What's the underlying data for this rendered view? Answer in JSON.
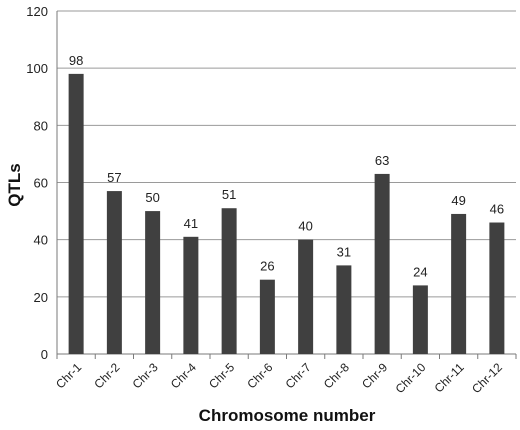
{
  "chart_data": {
    "type": "bar",
    "categories": [
      "Chr-1",
      "Chr-2",
      "Chr-3",
      "Chr-4",
      "Chr-5",
      "Chr-6",
      "Chr-7",
      "Chr-8",
      "Chr-9",
      "Chr-10",
      "Chr-11",
      "Chr-12"
    ],
    "values": [
      98,
      57,
      50,
      41,
      51,
      26,
      40,
      31,
      63,
      24,
      49,
      46
    ],
    "title": "",
    "xlabel": "Chromosome number",
    "ylabel": "QTLs",
    "ylim": [
      0,
      120
    ],
    "yticks": [
      0,
      20,
      40,
      60,
      80,
      100,
      120
    ],
    "grid": true,
    "bar_color": "#404040",
    "data_labels": true,
    "legend": "none"
  }
}
